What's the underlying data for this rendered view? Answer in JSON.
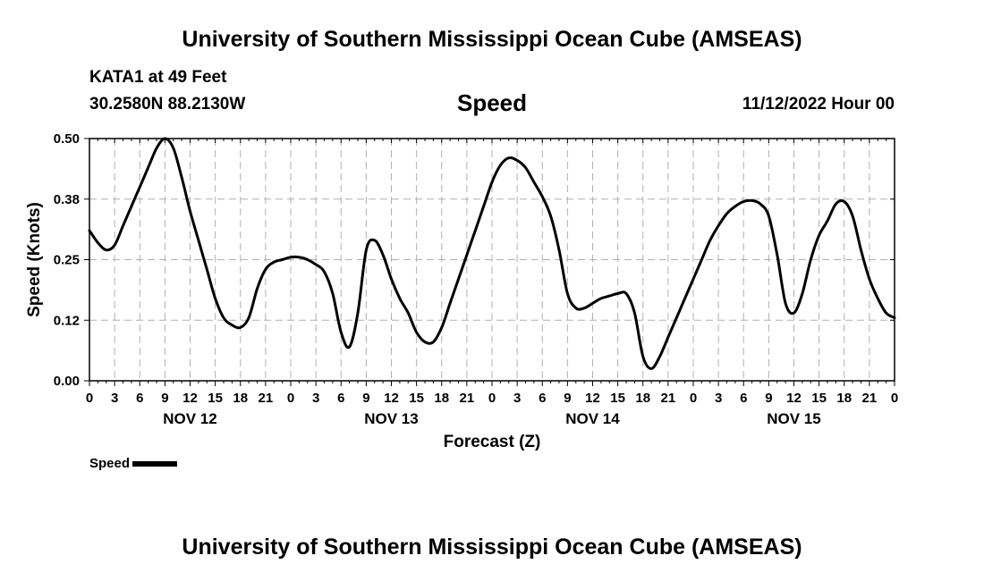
{
  "header": {
    "title": "University of Southern Mississippi Ocean Cube (AMSEAS)",
    "station": "KATA1 at 49 Feet",
    "coords": "30.2580N  88.2130W",
    "run_time": "11/12/2022 Hour 00"
  },
  "footer": {
    "title": "University of Southern Mississippi Ocean Cube (AMSEAS)"
  },
  "legend": {
    "label": "Speed"
  },
  "chart_data": {
    "type": "line",
    "title": "Speed",
    "xlabel": "Forecast (Z)",
    "ylabel": "Speed (Knots)",
    "xlim": [
      0,
      96
    ],
    "ylim": [
      0,
      0.5
    ],
    "yticks": [
      0.0,
      0.125,
      0.25,
      0.375,
      0.5
    ],
    "ytick_labels": [
      "0.00",
      "0.12",
      "0.25",
      "0.38",
      "0.50"
    ],
    "xtick_hours": [
      0,
      3,
      6,
      9,
      12,
      15,
      18,
      21,
      24,
      27,
      30,
      33,
      36,
      39,
      42,
      45,
      48,
      51,
      54,
      57,
      60,
      63,
      66,
      69,
      72,
      75,
      78,
      81,
      84,
      87,
      90,
      93,
      96
    ],
    "xtick_labels": [
      "0",
      "3",
      "6",
      "9",
      "12",
      "15",
      "18",
      "21",
      "0",
      "3",
      "6",
      "9",
      "12",
      "15",
      "18",
      "21",
      "0",
      "3",
      "6",
      "9",
      "12",
      "15",
      "18",
      "21",
      "0",
      "3",
      "6",
      "9",
      "12",
      "15",
      "18",
      "21",
      "0"
    ],
    "day_labels": [
      {
        "hour": 12,
        "label": "NOV 12"
      },
      {
        "hour": 36,
        "label": "NOV 13"
      },
      {
        "hour": 60,
        "label": "NOV 14"
      },
      {
        "hour": 84,
        "label": "NOV 15"
      }
    ],
    "grid": true,
    "series": [
      {
        "name": "Speed",
        "color": "#000000",
        "x": [
          0,
          1,
          2,
          3,
          4,
          5,
          6,
          7,
          8,
          9,
          10,
          11,
          12,
          13,
          14,
          15,
          16,
          17,
          18,
          19,
          20,
          21,
          22,
          23,
          24,
          25,
          26,
          27,
          28,
          29,
          30,
          31,
          32,
          33,
          34,
          35,
          36,
          37,
          38,
          39,
          40,
          41,
          42,
          43,
          44,
          45,
          46,
          47,
          48,
          49,
          50,
          51,
          52,
          53,
          54,
          55,
          56,
          57,
          58,
          59,
          60,
          61,
          62,
          63,
          64,
          65,
          66,
          67,
          68,
          69,
          70,
          71,
          72,
          73,
          74,
          75,
          76,
          77,
          78,
          79,
          80,
          81,
          82,
          83,
          84,
          85,
          86,
          87,
          88,
          89,
          90,
          91,
          92,
          93,
          94,
          95,
          96
        ],
        "values": [
          0.31,
          0.285,
          0.27,
          0.28,
          0.32,
          0.36,
          0.4,
          0.44,
          0.48,
          0.5,
          0.48,
          0.42,
          0.35,
          0.29,
          0.23,
          0.17,
          0.13,
          0.115,
          0.11,
          0.13,
          0.19,
          0.23,
          0.245,
          0.25,
          0.255,
          0.255,
          0.25,
          0.24,
          0.225,
          0.18,
          0.1,
          0.07,
          0.14,
          0.27,
          0.29,
          0.26,
          0.21,
          0.17,
          0.14,
          0.1,
          0.08,
          0.08,
          0.11,
          0.16,
          0.21,
          0.26,
          0.31,
          0.36,
          0.41,
          0.445,
          0.46,
          0.455,
          0.44,
          0.41,
          0.38,
          0.34,
          0.27,
          0.18,
          0.15,
          0.15,
          0.16,
          0.17,
          0.175,
          0.18,
          0.18,
          0.14,
          0.05,
          0.025,
          0.05,
          0.09,
          0.13,
          0.17,
          0.21,
          0.25,
          0.29,
          0.32,
          0.345,
          0.36,
          0.37,
          0.372,
          0.365,
          0.34,
          0.26,
          0.16,
          0.14,
          0.18,
          0.25,
          0.3,
          0.33,
          0.365,
          0.37,
          0.34,
          0.27,
          0.21,
          0.17,
          0.14,
          0.13
        ]
      }
    ]
  }
}
